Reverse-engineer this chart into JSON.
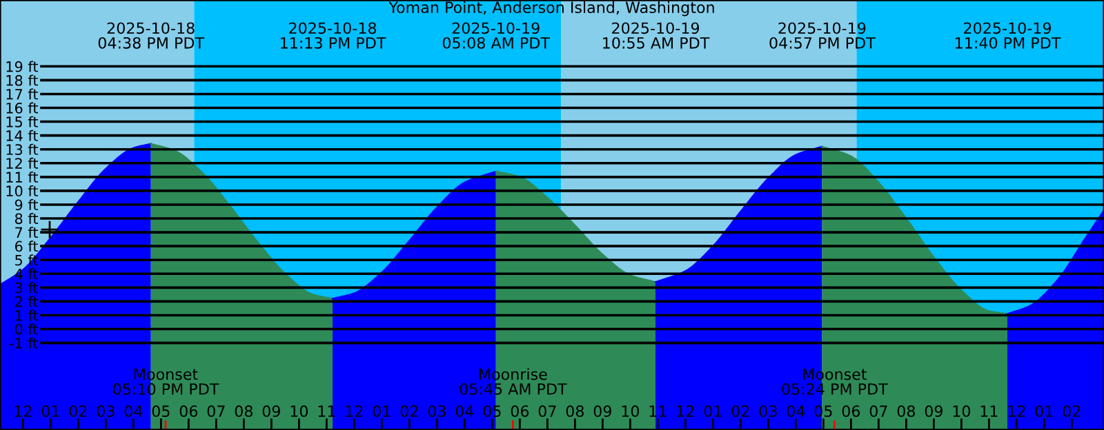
{
  "chart_data": {
    "type": "area",
    "title": "Yoman Point, Anderson Island, Washington",
    "xlim": [
      "2025-10-18T11:10",
      "2025-10-20T03:10"
    ],
    "ylim": [
      -7.3,
      23.8
    ],
    "xticks": [
      {
        "value": "2025-10-18T12:00",
        "label": "12"
      },
      {
        "value": "2025-10-18T13:00",
        "label": "01"
      },
      {
        "value": "2025-10-18T14:00",
        "label": "02"
      },
      {
        "value": "2025-10-18T15:00",
        "label": "03"
      },
      {
        "value": "2025-10-18T16:00",
        "label": "04"
      },
      {
        "value": "2025-10-18T17:00",
        "label": "05"
      },
      {
        "value": "2025-10-18T18:00",
        "label": "06"
      },
      {
        "value": "2025-10-18T19:00",
        "label": "07"
      },
      {
        "value": "2025-10-18T20:00",
        "label": "08"
      },
      {
        "value": "2025-10-18T21:00",
        "label": "09"
      },
      {
        "value": "2025-10-18T22:00",
        "label": "10"
      },
      {
        "value": "2025-10-18T23:00",
        "label": "11"
      },
      {
        "value": "2025-10-19T00:00",
        "label": "12"
      },
      {
        "value": "2025-10-19T01:00",
        "label": "01"
      },
      {
        "value": "2025-10-19T02:00",
        "label": "02"
      },
      {
        "value": "2025-10-19T03:00",
        "label": "03"
      },
      {
        "value": "2025-10-19T04:00",
        "label": "04"
      },
      {
        "value": "2025-10-19T05:00",
        "label": "05"
      },
      {
        "value": "2025-10-19T06:00",
        "label": "06"
      },
      {
        "value": "2025-10-19T07:00",
        "label": "07"
      },
      {
        "value": "2025-10-19T08:00",
        "label": "08"
      },
      {
        "value": "2025-10-19T09:00",
        "label": "09"
      },
      {
        "value": "2025-10-19T10:00",
        "label": "10"
      },
      {
        "value": "2025-10-19T11:00",
        "label": "11"
      },
      {
        "value": "2025-10-19T12:00",
        "label": "12"
      },
      {
        "value": "2025-10-19T13:00",
        "label": "01"
      },
      {
        "value": "2025-10-19T14:00",
        "label": "02"
      },
      {
        "value": "2025-10-19T15:00",
        "label": "03"
      },
      {
        "value": "2025-10-19T16:00",
        "label": "04"
      },
      {
        "value": "2025-10-19T17:00",
        "label": "05"
      },
      {
        "value": "2025-10-19T18:00",
        "label": "06"
      },
      {
        "value": "2025-10-19T19:00",
        "label": "07"
      },
      {
        "value": "2025-10-19T20:00",
        "label": "08"
      },
      {
        "value": "2025-10-19T21:00",
        "label": "09"
      },
      {
        "value": "2025-10-19T22:00",
        "label": "10"
      },
      {
        "value": "2025-10-19T23:00",
        "label": "11"
      },
      {
        "value": "2025-10-20T00:00",
        "label": "12"
      },
      {
        "value": "2025-10-20T01:00",
        "label": "01"
      },
      {
        "value": "2025-10-20T02:00",
        "label": "02"
      }
    ],
    "x2lim": [
      "2025-10-18T11:10",
      "2025-10-20T03:10"
    ],
    "x2ticks": [
      {
        "value": "2025-10-18T16:38",
        "label": "2025-10-18\n04:38 PM PDT"
      },
      {
        "value": "2025-10-18T23:13",
        "label": "2025-10-18\n11:13 PM PDT"
      },
      {
        "value": "2025-10-19T05:08",
        "label": "2025-10-19\n05:08 AM PDT"
      },
      {
        "value": "2025-10-19T10:55",
        "label": "2025-10-19\n10:55 AM PDT"
      },
      {
        "value": "2025-10-19T16:57",
        "label": "2025-10-19\n04:57 PM PDT"
      },
      {
        "value": "2025-10-19T23:40",
        "label": "2025-10-19\n11:40 PM PDT"
      }
    ],
    "yticks": [
      {
        "value": -1,
        "label": "-1 ft"
      },
      {
        "value": 0,
        "label": "0 ft"
      },
      {
        "value": 1,
        "label": "1 ft"
      },
      {
        "value": 2,
        "label": "2 ft"
      },
      {
        "value": 3,
        "label": "3 ft"
      },
      {
        "value": 4,
        "label": "4 ft"
      },
      {
        "value": 5,
        "label": "5 ft"
      },
      {
        "value": 6,
        "label": "6 ft"
      },
      {
        "value": 7,
        "label": "7 ft"
      },
      {
        "value": 8,
        "label": "8 ft"
      },
      {
        "value": 9,
        "label": "9 ft"
      },
      {
        "value": 10,
        "label": "10 ft"
      },
      {
        "value": 11,
        "label": "11 ft"
      },
      {
        "value": 12,
        "label": "12 ft"
      },
      {
        "value": 13,
        "label": "13 ft"
      },
      {
        "value": 14,
        "label": "14 ft"
      },
      {
        "value": 15,
        "label": "15 ft"
      },
      {
        "value": 16,
        "label": "16 ft"
      },
      {
        "value": 17,
        "label": "17 ft"
      },
      {
        "value": 18,
        "label": "18 ft"
      },
      {
        "value": 19,
        "label": "19 ft"
      }
    ],
    "grid": "y",
    "legend": false,
    "series": [
      {
        "color": "#0000ff",
        "x": [
          "2025-10-18T11:10",
          "2025-10-18T12:00",
          "2025-10-18T13:00",
          "2025-10-18T14:00",
          "2025-10-18T15:00",
          "2025-10-18T16:00",
          "2025-10-18T16:38"
        ],
        "values": [
          3.2,
          4.3,
          6.6,
          9.2,
          11.6,
          13.1,
          13.4
        ]
      },
      {
        "color": "#2e8b57",
        "x": [
          "2025-10-18T16:38",
          "2025-10-18T17:30",
          "2025-10-18T18:30",
          "2025-10-18T19:30",
          "2025-10-18T20:30",
          "2025-10-18T21:30",
          "2025-10-18T22:30",
          "2025-10-18T23:13"
        ],
        "values": [
          13.4,
          12.9,
          11.3,
          8.9,
          6.3,
          4.0,
          2.5,
          2.2
        ]
      },
      {
        "color": "#0000ff",
        "x": [
          "2025-10-18T23:13",
          "2025-10-19T00:00",
          "2025-10-19T01:00",
          "2025-10-19T02:00",
          "2025-10-19T03:00",
          "2025-10-19T04:00",
          "2025-10-19T05:08"
        ],
        "values": [
          2.2,
          2.6,
          4.1,
          6.4,
          8.8,
          10.6,
          11.4
        ]
      },
      {
        "color": "#2e8b57",
        "x": [
          "2025-10-19T05:08",
          "2025-10-19T06:00",
          "2025-10-19T07:00",
          "2025-10-19T08:00",
          "2025-10-19T09:00",
          "2025-10-19T10:00",
          "2025-10-19T10:55"
        ],
        "values": [
          11.4,
          11.0,
          9.5,
          7.5,
          5.4,
          3.9,
          3.4
        ]
      },
      {
        "color": "#0000ff",
        "x": [
          "2025-10-19T10:55",
          "2025-10-19T12:00",
          "2025-10-19T13:00",
          "2025-10-19T14:00",
          "2025-10-19T15:00",
          "2025-10-19T16:00",
          "2025-10-19T16:57"
        ],
        "values": [
          3.4,
          4.2,
          6.0,
          8.5,
          10.9,
          12.6,
          13.2
        ]
      },
      {
        "color": "#2e8b57",
        "x": [
          "2025-10-19T16:57",
          "2025-10-19T18:00",
          "2025-10-19T19:00",
          "2025-10-19T20:00",
          "2025-10-19T21:00",
          "2025-10-19T22:00",
          "2025-10-19T23:00",
          "2025-10-19T23:40"
        ],
        "values": [
          13.2,
          12.5,
          10.6,
          8.0,
          5.2,
          2.8,
          1.3,
          1.1
        ]
      },
      {
        "color": "#0000ff",
        "x": [
          "2025-10-19T23:40",
          "2025-10-20T00:30",
          "2025-10-20T01:30",
          "2025-10-20T02:30",
          "2025-10-20T03:10"
        ],
        "values": [
          1.1,
          1.7,
          3.6,
          6.6,
          8.6
        ]
      },
      {
        "type": "scatter",
        "color": "#000000",
        "marker": "cross",
        "x": [
          "2025-10-18T12:58"
        ],
        "values": [
          7.2
        ]
      }
    ],
    "bands": [
      {
        "axis": "x",
        "from": "2025-10-18T11:10",
        "to": "2025-10-18T18:12",
        "color": "#87ceeb"
      },
      {
        "axis": "x",
        "from": "2025-10-18T18:12",
        "to": "2025-10-19T07:30",
        "color": "#00bfff"
      },
      {
        "axis": "x",
        "from": "2025-10-19T07:30",
        "to": "2025-10-19T18:12",
        "color": "#87ceeb"
      },
      {
        "axis": "x",
        "from": "2025-10-19T18:12",
        "to": "2025-10-20T03:10",
        "color": "#00bfff"
      }
    ],
    "annotations": [
      {
        "text": "Moonset\n05:10 PM PDT",
        "x": "2025-10-18T17:10",
        "y": -7.3
      },
      {
        "text": "Moonrise\n05:45 AM PDT",
        "x": "2025-10-19T05:45",
        "y": -7.3
      },
      {
        "text": "Moonset\n05:24 PM PDT",
        "x": "2025-10-19T17:24",
        "y": -7.3
      }
    ]
  }
}
